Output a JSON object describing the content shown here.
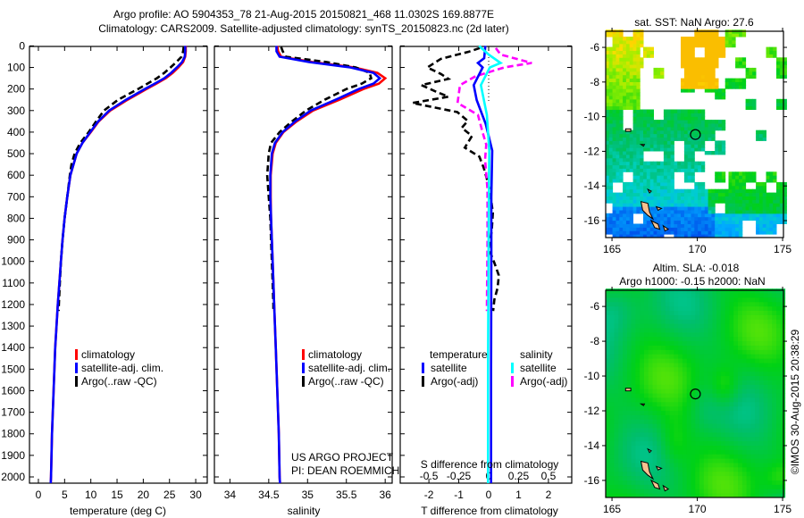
{
  "header": {
    "title_line1": "Argo profile: AO 5904353_78 21-Aug-2015 20150821_468 11.0302S 169.8877E",
    "title_line2": "Climatology: CARS2009. Satellite-adjusted climatology: synTS_20150823.nc (2d later)"
  },
  "credits": {
    "project": "US ARGO PROJECT",
    "pi": "PI: DEAN ROEMMICH",
    "stamp": "©IMOS 30-Aug-2015 20:38:29"
  },
  "colors": {
    "climatology": "#ff0000",
    "satellite": "#0000ff",
    "argo": "#000000",
    "sal_satellite": "#00ffff",
    "sal_argo": "#ff00ff"
  },
  "chart_data": [
    {
      "type": "line",
      "title": "",
      "xlabel": "temperature (deg C)",
      "ylabel": "",
      "xlim": [
        -1.7,
        32.2
      ],
      "ylim": [
        2029,
        0
      ],
      "xticks": [
        "0",
        "5",
        "10",
        "15",
        "20",
        "25",
        "30"
      ],
      "yticks": [
        "0",
        "100",
        "200",
        "300",
        "400",
        "500",
        "600",
        "700",
        "800",
        "900",
        "1000",
        "1100",
        "1200",
        "1300",
        "1400",
        "1500",
        "1600",
        "1700",
        "1800",
        "1900",
        "2000"
      ],
      "legend": [
        "climatology",
        "satellite-adj. clim.",
        "Argo(..raw -QC)"
      ],
      "depth": [
        0,
        25,
        50,
        75,
        100,
        125,
        150,
        175,
        200,
        250,
        300,
        350,
        400,
        450,
        500,
        600,
        700,
        800,
        900,
        1000,
        1200,
        1400,
        1600,
        1800,
        2000,
        2029
      ],
      "argo_depth": [
        5,
        25,
        50,
        75,
        100,
        125,
        150,
        175,
        200,
        250,
        300,
        350,
        400,
        450,
        500,
        550,
        600,
        700,
        800,
        900,
        1000,
        1100,
        1200,
        1230
      ],
      "series": [
        {
          "name": "climatology",
          "values": [
            28.1,
            28.1,
            28.0,
            27.6,
            26.7,
            25.6,
            24.3,
            22.5,
            20.6,
            17.0,
            13.7,
            11.5,
            10.0,
            8.4,
            7.3,
            6.1,
            5.5,
            5.0,
            4.6,
            4.3,
            3.7,
            3.2,
            2.9,
            2.6,
            2.4,
            2.35
          ]
        },
        {
          "name": "satellite-adj. clim.",
          "values": [
            28.0,
            28.0,
            27.9,
            27.4,
            26.4,
            25.3,
            24.0,
            22.2,
            20.3,
            16.7,
            13.5,
            11.4,
            9.9,
            8.4,
            7.3,
            6.1,
            5.5,
            5.0,
            4.6,
            4.3,
            3.7,
            3.2,
            2.9,
            2.6,
            2.4,
            2.35
          ]
        },
        {
          "name": "Argo(..raw -QC)",
          "values": [
            27.7,
            27.6,
            27.3,
            26.3,
            25.2,
            24.0,
            22.6,
            20.8,
            19.0,
            15.2,
            12.5,
            11.0,
            9.6,
            8.0,
            6.9,
            6.3,
            6.0,
            5.5,
            5.0,
            4.6,
            4.3,
            4.1,
            3.9,
            3.85
          ]
        }
      ]
    },
    {
      "type": "line",
      "xlabel": "salinity",
      "xlim": [
        33.8,
        36.09
      ],
      "ylim": [
        2029,
        0
      ],
      "xticks": [
        "34",
        "34.5",
        "35",
        "35.5",
        "36"
      ],
      "legend": [
        "climatology",
        "satellite-adj. clim.",
        "Argo(..raw -QC)"
      ],
      "series": [
        {
          "name": "climatology",
          "values": [
            34.61,
            34.62,
            34.66,
            35.07,
            35.6,
            35.9,
            36.0,
            35.92,
            35.72,
            35.41,
            35.07,
            34.86,
            34.69,
            34.59,
            34.55,
            34.525,
            34.525,
            34.53,
            34.54,
            34.55,
            34.57,
            34.59,
            34.61,
            34.63,
            34.64,
            34.645
          ]
        },
        {
          "name": "satellite-adj. clim.",
          "values": [
            34.6,
            34.6,
            34.64,
            35.02,
            35.55,
            35.85,
            35.93,
            35.85,
            35.66,
            35.36,
            35.04,
            34.84,
            34.68,
            34.58,
            34.54,
            34.52,
            34.52,
            34.53,
            34.54,
            34.55,
            34.57,
            34.59,
            34.61,
            34.63,
            34.64,
            34.645
          ]
        },
        {
          "name": "Argo(..raw -QC)",
          "values": [
            34.66,
            34.68,
            34.72,
            35.25,
            35.62,
            35.8,
            35.82,
            35.7,
            35.5,
            35.22,
            34.98,
            34.8,
            34.64,
            34.53,
            34.5,
            34.49,
            34.48,
            34.5,
            34.52,
            34.53,
            34.54,
            34.55,
            34.56,
            34.56
          ]
        }
      ]
    },
    {
      "type": "line",
      "xlabel": "T difference from climatology",
      "x2label": "S difference from climatology",
      "xlim": [
        -2.96,
        2.78
      ],
      "ylim": [
        2029,
        0
      ],
      "xticks": [
        "-2",
        "-1",
        "0",
        "1",
        "2"
      ],
      "x2ticks": [
        "-0.5",
        "-0.25",
        "0",
        "0.25",
        "0.5"
      ],
      "s_to_t_scale": 4,
      "legend": {
        "temperature_header": "temperature",
        "salinity_header": "salinity",
        "satellite": "satellite",
        "argo": "Argo(-adj)"
      },
      "series": [
        {
          "name": "T satellite",
          "depth": [
            0,
            57,
            79,
            100,
            182,
            251,
            362,
            486,
            700,
            1000,
            1500,
            2029
          ],
          "values": [
            -0.11,
            -0.15,
            -0.36,
            -0.2,
            -0.5,
            -0.4,
            -0.1,
            0.12,
            0.09,
            0.09,
            0.08,
            0.08
          ]
        },
        {
          "name": "T Argo(-adj)",
          "depth": [
            10,
            27,
            60,
            100,
            130,
            153,
            182,
            210,
            236,
            265,
            307,
            348,
            380,
            418,
            472,
            514,
            568,
            667,
            775,
            860,
            940,
            1010,
            1065,
            1123,
            1177,
            1230
          ],
          "values": [
            -0.3,
            -0.66,
            -1.6,
            -2.05,
            -1.6,
            -1.35,
            -2.25,
            -1.8,
            -1.35,
            -2.55,
            -1.05,
            -0.7,
            -0.9,
            -0.56,
            -0.8,
            -0.31,
            -0.16,
            0.04,
            0.14,
            0.1,
            0.0,
            0.2,
            0.34,
            0.3,
            0.19,
            0.15
          ]
        },
        {
          "name": "S satellite",
          "depth": [
            0,
            40,
            79,
            100,
            182,
            320,
            486,
            800,
            1500,
            2029
          ],
          "values": [
            -0.08,
            0.0,
            0.1,
            0.01,
            -0.065,
            -0.015,
            0.005,
            0.0,
            -0.005,
            -0.005
          ]
        },
        {
          "name": "S Argo(-adj)",
          "depth": [
            10,
            40,
            79,
            100,
            141,
            182,
            265,
            320,
            402,
            458,
            527,
            667,
            900,
            1230
          ],
          "values": [
            0.06,
            0.1,
            0.36,
            0.13,
            -0.11,
            -0.24,
            -0.26,
            -0.09,
            -0.05,
            -0.02,
            -0.03,
            -0.01,
            -0.01,
            -0.015
          ]
        }
      ]
    },
    {
      "type": "heatmap",
      "title": "sat. SST: NaN Argo: 27.6",
      "xlim": [
        164.63,
        175.05
      ],
      "ylim": [
        -16.98,
        -5.07
      ],
      "xticks": [
        "165",
        "170",
        "175"
      ],
      "yticks": [
        "-6",
        "-8",
        "-10",
        "-12",
        "-14",
        "-16"
      ],
      "argo_position": {
        "lon": 169.8877,
        "lat": -11.0302
      }
    },
    {
      "type": "heatmap",
      "title": "Altim. SLA: -0.018",
      "subtitle": "Argo h1000: -0.15 h2000: NaN",
      "xlim": [
        164.63,
        175.05
      ],
      "ylim": [
        -16.98,
        -5.07
      ],
      "xticks": [
        "165",
        "170",
        "175"
      ],
      "yticks": [
        "-6",
        "-8",
        "-10",
        "-12",
        "-14",
        "-16"
      ],
      "argo_position": {
        "lon": 169.8877,
        "lat": -11.0302
      }
    }
  ]
}
